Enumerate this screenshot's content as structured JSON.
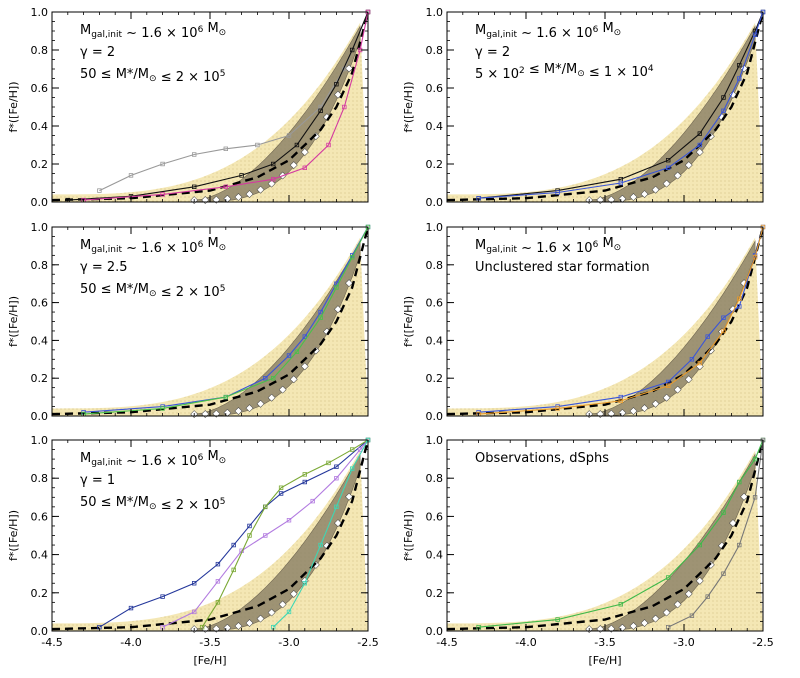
{
  "chart_data": [
    {
      "type": "line",
      "title": "",
      "xlabel": "[Fe/H]",
      "ylabel": "f*([Fe/H])",
      "xlim": [
        -4.5,
        -2.5
      ],
      "ylim": [
        0.0,
        1.0
      ],
      "xticks": [
        "-4.5",
        "-4.0",
        "-3.5",
        "-3.0",
        "-2.5"
      ],
      "yticks": [
        "0.0",
        "0.2",
        "0.4",
        "0.6",
        "0.8",
        "1.0"
      ],
      "annotation_lines": [
        "M_gal,init ~ 1.6 × 10^6 M_⊙",
        "γ = 2",
        "50 ≤ M*/M_⊙ ≤ 2 × 10^5"
      ],
      "series": [
        {
          "name": "dashed mean",
          "x": [
            -4.5,
            -4.0,
            -3.5,
            -3.2,
            -3.0,
            -2.8,
            -2.7,
            -2.6,
            -2.5
          ],
          "y": [
            0.01,
            0.02,
            0.06,
            0.13,
            0.22,
            0.38,
            0.5,
            0.68,
            1.0
          ]
        },
        {
          "name": "outlier (gray)",
          "x": [
            -4.2,
            -4.0,
            -3.8,
            -3.6,
            -3.4,
            -3.2,
            -3.0,
            -2.8,
            -2.65,
            -2.5
          ],
          "y": [
            0.06,
            0.14,
            0.2,
            0.25,
            0.28,
            0.3,
            0.35,
            0.5,
            0.7,
            1.0
          ]
        },
        {
          "name": "black",
          "x": [
            -4.4,
            -4.0,
            -3.6,
            -3.3,
            -3.1,
            -2.95,
            -2.8,
            -2.7,
            -2.6,
            -2.5
          ],
          "y": [
            0.01,
            0.03,
            0.08,
            0.14,
            0.2,
            0.3,
            0.48,
            0.62,
            0.8,
            1.0
          ]
        },
        {
          "name": "magenta",
          "x": [
            -4.3,
            -3.8,
            -3.4,
            -3.1,
            -2.9,
            -2.75,
            -2.65,
            -2.55,
            -2.5
          ],
          "y": [
            0.01,
            0.04,
            0.08,
            0.12,
            0.18,
            0.3,
            0.5,
            0.8,
            1.0
          ]
        }
      ]
    },
    {
      "type": "line",
      "title": "",
      "xlabel": "[Fe/H]",
      "ylabel": "f*([Fe/H])",
      "xlim": [
        -4.5,
        -2.5
      ],
      "ylim": [
        0.0,
        1.0
      ],
      "xticks": [
        "-4.5",
        "-4.0",
        "-3.5",
        "-3.0",
        "-2.5"
      ],
      "yticks": [
        "0.0",
        "0.2",
        "0.4",
        "0.6",
        "0.8",
        "1.0"
      ],
      "annotation_lines": [
        "M_gal,init ~ 1.6 × 10^6 M_⊙",
        "γ = 2",
        "5 × 10^2 ≤ M*/M_⊙ ≤ 1 × 10^4"
      ],
      "series": [
        {
          "name": "dashed mean",
          "x": [
            -4.5,
            -4.0,
            -3.5,
            -3.2,
            -3.0,
            -2.8,
            -2.7,
            -2.6,
            -2.5
          ],
          "y": [
            0.01,
            0.02,
            0.06,
            0.13,
            0.22,
            0.38,
            0.5,
            0.68,
            1.0
          ]
        },
        {
          "name": "black",
          "x": [
            -4.3,
            -3.8,
            -3.4,
            -3.1,
            -2.9,
            -2.75,
            -2.65,
            -2.55,
            -2.5
          ],
          "y": [
            0.02,
            0.06,
            0.12,
            0.22,
            0.36,
            0.55,
            0.72,
            0.9,
            1.0
          ]
        },
        {
          "name": "blue",
          "x": [
            -4.3,
            -3.8,
            -3.4,
            -3.1,
            -2.9,
            -2.75,
            -2.65,
            -2.55,
            -2.5
          ],
          "y": [
            0.02,
            0.05,
            0.1,
            0.18,
            0.3,
            0.48,
            0.65,
            0.88,
            1.0
          ]
        }
      ]
    },
    {
      "type": "line",
      "title": "",
      "xlabel": "[Fe/H]",
      "ylabel": "f*([Fe/H])",
      "xlim": [
        -4.5,
        -2.5
      ],
      "ylim": [
        0.0,
        1.0
      ],
      "xticks": [
        "-4.5",
        "-4.0",
        "-3.5",
        "-3.0",
        "-2.5"
      ],
      "yticks": [
        "0.0",
        "0.2",
        "0.4",
        "0.6",
        "0.8",
        "1.0"
      ],
      "annotation_lines": [
        "M_gal,init ~ 1.6 × 10^6 M_⊙",
        "γ = 2.5",
        "50 ≤ M*/M_⊙ ≤ 2 × 10^5"
      ],
      "series": [
        {
          "name": "dashed mean",
          "x": [
            -4.5,
            -4.0,
            -3.5,
            -3.2,
            -3.0,
            -2.8,
            -2.7,
            -2.6,
            -2.5
          ],
          "y": [
            0.01,
            0.02,
            0.06,
            0.13,
            0.22,
            0.38,
            0.5,
            0.68,
            1.0
          ]
        },
        {
          "name": "blue",
          "x": [
            -4.3,
            -3.8,
            -3.4,
            -3.15,
            -3.0,
            -2.9,
            -2.8,
            -2.7,
            -2.6,
            -2.5
          ],
          "y": [
            0.02,
            0.05,
            0.1,
            0.2,
            0.32,
            0.42,
            0.55,
            0.7,
            0.85,
            1.0
          ]
        },
        {
          "name": "green",
          "x": [
            -4.3,
            -3.8,
            -3.4,
            -3.1,
            -2.95,
            -2.8,
            -2.7,
            -2.6,
            -2.5
          ],
          "y": [
            0.01,
            0.04,
            0.1,
            0.2,
            0.34,
            0.52,
            0.68,
            0.84,
            1.0
          ]
        }
      ]
    },
    {
      "type": "line",
      "title": "",
      "xlabel": "[Fe/H]",
      "ylabel": "f*([Fe/H])",
      "xlim": [
        -4.5,
        -2.5
      ],
      "ylim": [
        0.0,
        1.0
      ],
      "xticks": [
        "-4.5",
        "-4.0",
        "-3.5",
        "-3.0",
        "-2.5"
      ],
      "yticks": [
        "0.0",
        "0.2",
        "0.4",
        "0.6",
        "0.8",
        "1.0"
      ],
      "annotation_lines": [
        "M_gal,init ~ 1.6 × 10^6 M_⊙",
        "Unclustered star formation"
      ],
      "series": [
        {
          "name": "dashed mean",
          "x": [
            -4.5,
            -4.0,
            -3.5,
            -3.2,
            -3.0,
            -2.8,
            -2.7,
            -2.6,
            -2.5
          ],
          "y": [
            0.01,
            0.02,
            0.06,
            0.13,
            0.22,
            0.38,
            0.5,
            0.68,
            1.0
          ]
        },
        {
          "name": "blue",
          "x": [
            -4.3,
            -3.8,
            -3.4,
            -3.1,
            -2.95,
            -2.85,
            -2.75,
            -2.65,
            -2.55,
            -2.5
          ],
          "y": [
            0.02,
            0.05,
            0.1,
            0.18,
            0.3,
            0.42,
            0.52,
            0.58,
            0.85,
            1.0
          ]
        },
        {
          "name": "orange",
          "x": [
            -4.3,
            -3.8,
            -3.4,
            -3.1,
            -2.9,
            -2.75,
            -2.65,
            -2.55,
            -2.5
          ],
          "y": [
            0.01,
            0.04,
            0.08,
            0.16,
            0.28,
            0.45,
            0.62,
            0.84,
            1.0
          ]
        }
      ]
    },
    {
      "type": "line",
      "title": "",
      "xlabel": "[Fe/H]",
      "ylabel": "f*([Fe/H])",
      "xlim": [
        -4.5,
        -2.5
      ],
      "ylim": [
        0.0,
        1.0
      ],
      "xticks": [
        "-4.5",
        "-4.0",
        "-3.5",
        "-3.0",
        "-2.5"
      ],
      "yticks": [
        "0.0",
        "0.2",
        "0.4",
        "0.6",
        "0.8",
        "1.0"
      ],
      "annotation_lines": [
        "M_gal,init ~ 1.6 × 10^6 M_⊙",
        "γ = 1",
        "50 ≤ M*/M_⊙ ≤ 2 × 10^5"
      ],
      "series": [
        {
          "name": "dashed mean",
          "x": [
            -4.5,
            -4.0,
            -3.5,
            -3.2,
            -3.0,
            -2.8,
            -2.7,
            -2.6,
            -2.5
          ],
          "y": [
            0.01,
            0.02,
            0.06,
            0.13,
            0.22,
            0.38,
            0.5,
            0.68,
            1.0
          ]
        },
        {
          "name": "dark blue",
          "x": [
            -4.2,
            -4.0,
            -3.8,
            -3.6,
            -3.45,
            -3.35,
            -3.25,
            -3.15,
            -3.05,
            -2.9,
            -2.7,
            -2.5
          ],
          "y": [
            0.02,
            0.12,
            0.18,
            0.25,
            0.35,
            0.45,
            0.55,
            0.65,
            0.72,
            0.78,
            0.86,
            1.0
          ]
        },
        {
          "name": "violet",
          "x": [
            -3.8,
            -3.6,
            -3.45,
            -3.3,
            -3.15,
            -3.0,
            -2.85,
            -2.7,
            -2.55,
            -2.5
          ],
          "y": [
            0.02,
            0.1,
            0.26,
            0.42,
            0.5,
            0.58,
            0.68,
            0.8,
            0.95,
            1.0
          ]
        },
        {
          "name": "olive green",
          "x": [
            -3.55,
            -3.45,
            -3.35,
            -3.25,
            -3.15,
            -3.05,
            -2.9,
            -2.75,
            -2.6,
            -2.5
          ],
          "y": [
            0.02,
            0.15,
            0.32,
            0.5,
            0.65,
            0.75,
            0.82,
            0.88,
            0.95,
            1.0
          ]
        },
        {
          "name": "cyan-green",
          "x": [
            -3.1,
            -3.0,
            -2.9,
            -2.8,
            -2.7,
            -2.6,
            -2.5
          ],
          "y": [
            0.02,
            0.1,
            0.25,
            0.45,
            0.65,
            0.85,
            1.0
          ]
        }
      ]
    },
    {
      "type": "line",
      "title": "",
      "xlabel": "[Fe/H]",
      "ylabel": "f*([Fe/H])",
      "xlim": [
        -4.5,
        -2.5
      ],
      "ylim": [
        0.0,
        1.0
      ],
      "xticks": [
        "-4.5",
        "-4.0",
        "-3.5",
        "-3.0",
        "-2.5"
      ],
      "yticks": [
        "0.0",
        "0.2",
        "0.4",
        "0.6",
        "0.8",
        "1.0"
      ],
      "annotation_lines": [
        "Observations, dSphs"
      ],
      "series": [
        {
          "name": "dashed mean",
          "x": [
            -4.5,
            -4.0,
            -3.5,
            -3.2,
            -3.0,
            -2.8,
            -2.7,
            -2.6,
            -2.5
          ],
          "y": [
            0.01,
            0.02,
            0.06,
            0.13,
            0.22,
            0.38,
            0.5,
            0.68,
            1.0
          ]
        },
        {
          "name": "green observed",
          "x": [
            -4.3,
            -3.8,
            -3.4,
            -3.1,
            -2.9,
            -2.75,
            -2.65,
            -2.55,
            -2.5
          ],
          "y": [
            0.02,
            0.06,
            0.14,
            0.28,
            0.45,
            0.62,
            0.78,
            0.9,
            1.0
          ]
        },
        {
          "name": "gray observed",
          "x": [
            -3.1,
            -2.95,
            -2.85,
            -2.75,
            -2.65,
            -2.55,
            -2.5
          ],
          "y": [
            0.02,
            0.08,
            0.18,
            0.3,
            0.45,
            0.7,
            1.0
          ]
        }
      ]
    }
  ]
}
